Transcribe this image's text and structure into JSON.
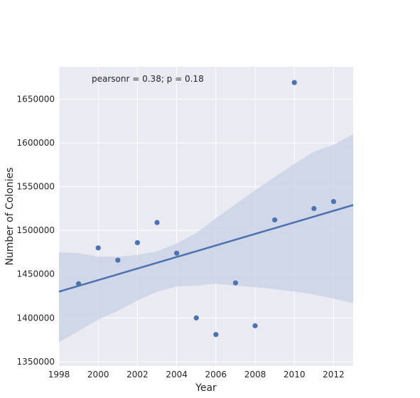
{
  "chart_data": {
    "type": "scatter",
    "xlabel": "Year",
    "ylabel": "Number of Colonies",
    "annotation": "pearsonr = 0.38; p = 0.18",
    "xlim": [
      1998,
      2013
    ],
    "ylim": [
      1345000,
      1687000
    ],
    "x_ticks": [
      1998,
      2000,
      2002,
      2004,
      2006,
      2008,
      2010,
      2012
    ],
    "y_ticks": [
      1350000,
      1400000,
      1450000,
      1500000,
      1550000,
      1600000,
      1650000
    ],
    "grid": true,
    "points": [
      {
        "x": 1999,
        "y": 1439000
      },
      {
        "x": 2000,
        "y": 1480000
      },
      {
        "x": 2001,
        "y": 1466000
      },
      {
        "x": 2002,
        "y": 1486000
      },
      {
        "x": 2003,
        "y": 1509000
      },
      {
        "x": 2004,
        "y": 1474000
      },
      {
        "x": 2005,
        "y": 1400000
      },
      {
        "x": 2006,
        "y": 1381000
      },
      {
        "x": 2007,
        "y": 1440000
      },
      {
        "x": 2008,
        "y": 1391000
      },
      {
        "x": 2009,
        "y": 1512000
      },
      {
        "x": 2010,
        "y": 1669000
      },
      {
        "x": 2011,
        "y": 1525000
      },
      {
        "x": 2012,
        "y": 1533000
      }
    ],
    "regression_line": [
      {
        "x": 1998,
        "y": 1430000
      },
      {
        "x": 2013,
        "y": 1529000
      }
    ],
    "confidence_band": {
      "upper": [
        {
          "x": 1998,
          "y": 1475000
        },
        {
          "x": 1999,
          "y": 1474000
        },
        {
          "x": 2000,
          "y": 1470000
        },
        {
          "x": 2001,
          "y": 1470000
        },
        {
          "x": 2002,
          "y": 1472000
        },
        {
          "x": 2003,
          "y": 1476000
        },
        {
          "x": 2004,
          "y": 1485000
        },
        {
          "x": 2005,
          "y": 1497000
        },
        {
          "x": 2006,
          "y": 1514000
        },
        {
          "x": 2007,
          "y": 1530000
        },
        {
          "x": 2008,
          "y": 1546000
        },
        {
          "x": 2009,
          "y": 1561000
        },
        {
          "x": 2010,
          "y": 1576000
        },
        {
          "x": 2011,
          "y": 1590000
        },
        {
          "x": 2012,
          "y": 1598000
        },
        {
          "x": 2013,
          "y": 1610000
        }
      ],
      "lower": [
        {
          "x": 1998,
          "y": 1372000
        },
        {
          "x": 1999,
          "y": 1385000
        },
        {
          "x": 2000,
          "y": 1398000
        },
        {
          "x": 2001,
          "y": 1408000
        },
        {
          "x": 2002,
          "y": 1420000
        },
        {
          "x": 2003,
          "y": 1430000
        },
        {
          "x": 2004,
          "y": 1436000
        },
        {
          "x": 2005,
          "y": 1437000
        },
        {
          "x": 2006,
          "y": 1439000
        },
        {
          "x": 2007,
          "y": 1437000
        },
        {
          "x": 2008,
          "y": 1435000
        },
        {
          "x": 2009,
          "y": 1433000
        },
        {
          "x": 2010,
          "y": 1430000
        },
        {
          "x": 2011,
          "y": 1427000
        },
        {
          "x": 2012,
          "y": 1422000
        },
        {
          "x": 2013,
          "y": 1417000
        }
      ]
    },
    "colors": {
      "background": "#eaeaf2",
      "grid": "#ffffff",
      "line": "#4c72b0",
      "points": "#4c72b0",
      "band": "#c7d0e5"
    }
  }
}
